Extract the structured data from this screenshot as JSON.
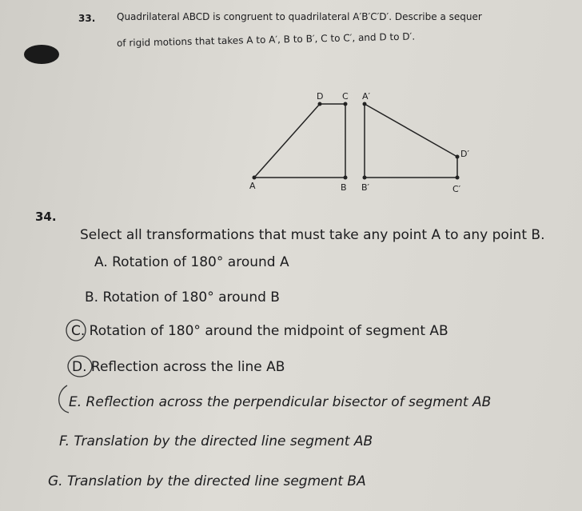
{
  "problem33": {
    "number": "33.",
    "line1": "Quadrilateral ABCD is congruent to quadrilateral A′B′C′D′. Describe a sequer",
    "line2": "of rigid motions that takes A to A′, B to B′, C to C′, and D to D′.",
    "figure": {
      "D": "D",
      "C": "C",
      "A_prime": "A′",
      "D_prime": "D′",
      "A": "A",
      "B": "B",
      "B_prime": "B′",
      "C_prime": "C′"
    }
  },
  "problem34": {
    "number": "34.",
    "question": "Select all transformations that must take any point A to any point B.",
    "options": [
      "A. Rotation of 180° around A",
      "B. Rotation of 180° around B",
      "C. Rotation of 180° around the midpoint of segment AB",
      "D. Reflection across the line AB",
      "E. Reflection across the perpendicular bisector of segment AB",
      "F. Translation by the directed line segment AB",
      "G. Translation by the directed line segment BA"
    ]
  }
}
